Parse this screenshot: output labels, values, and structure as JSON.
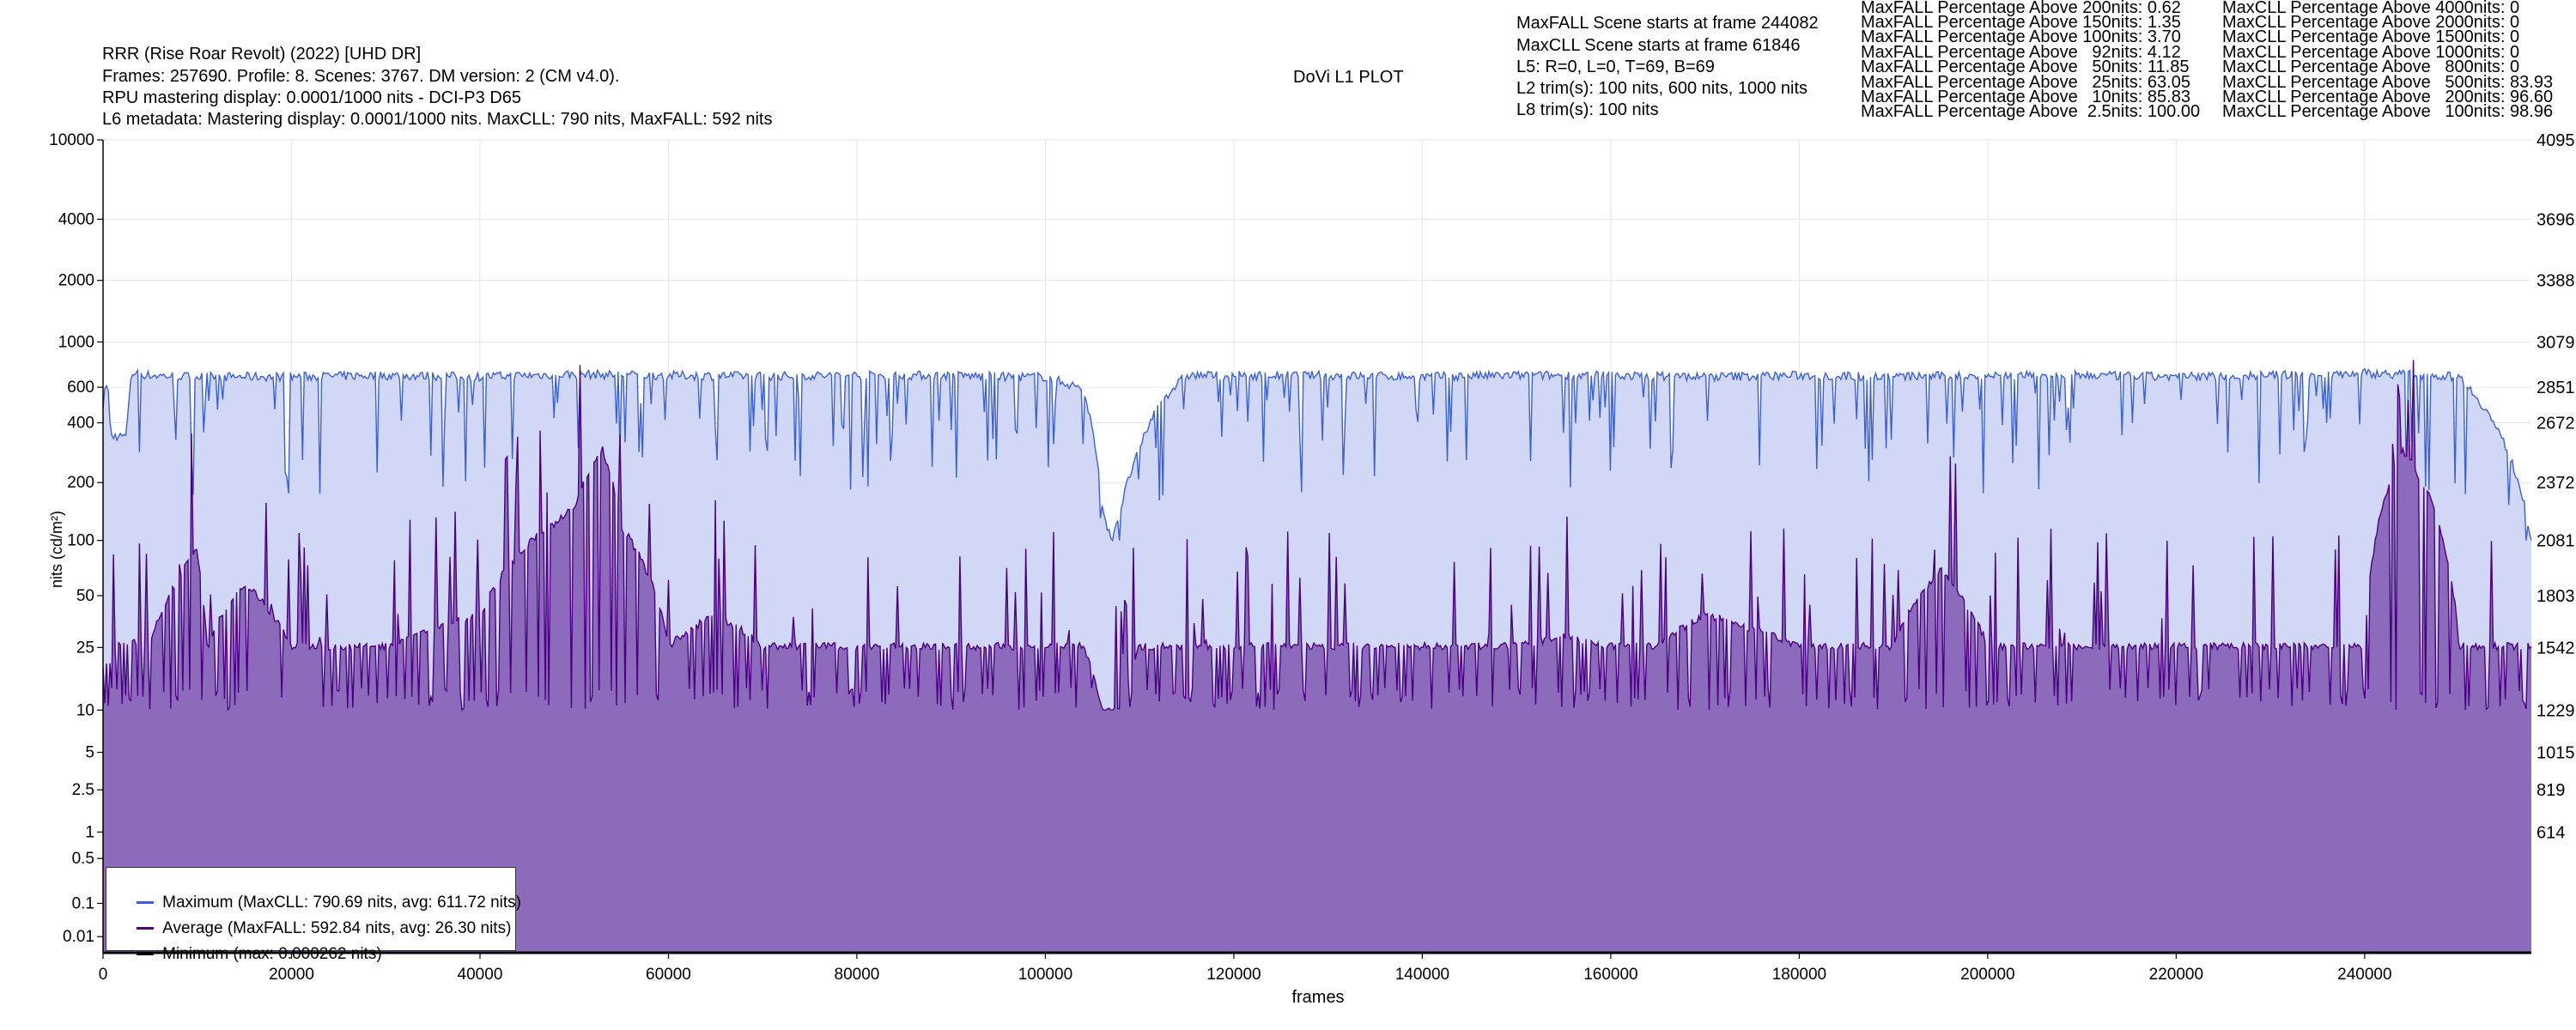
{
  "header": {
    "lines": [
      "RRR (Rise Roar Revolt) (2022) [UHD DR]",
      "Frames: 257690. Profile: 8. Scenes: 3767. DM version: 2 (CM v4.0).",
      "RPU mastering display: 0.0001/1000 nits - DCI-P3 D65",
      "L6 metadata: Mastering display: 0.0001/1000 nits. MaxCLL: 790 nits, MaxFALL: 592 nits"
    ],
    "plot_title": "DoVi L1 PLOT",
    "info_lines": [
      "MaxFALL Scene starts at frame 244082",
      "MaxCLL Scene starts at frame 61846",
      "L5: R=0, L=0, T=69, B=69",
      "L2 trim(s): 100 nits, 600 nits, 1000 nits",
      "L8 trim(s): 100 nits"
    ],
    "maxfall_stats": [
      "MaxFALL Percentage Above 200nits: 0.62",
      "MaxFALL Percentage Above 150nits: 1.35",
      "MaxFALL Percentage Above 100nits: 3.70",
      "MaxFALL Percentage Above   92nits: 4.12",
      "MaxFALL Percentage Above   50nits: 11.85",
      "MaxFALL Percentage Above   25nits: 63.05",
      "MaxFALL Percentage Above   10nits: 85.83",
      "MaxFALL Percentage Above  2.5nits: 100.00"
    ],
    "maxcll_stats": [
      "MaxCLL Percentage Above 4000nits: 0",
      "MaxCLL Percentage Above 2000nits: 0",
      "MaxCLL Percentage Above 1500nits: 0",
      "MaxCLL Percentage Above 1000nits: 0",
      "MaxCLL Percentage Above   800nits: 0",
      "MaxCLL Percentage Above   500nits: 83.93",
      "MaxCLL Percentage Above   200nits: 96.60",
      "MaxCLL Percentage Above   100nits: 98.96"
    ]
  },
  "legend": {
    "max_label": "Maximum (MaxCLL: 790.69 nits, avg: 611.72 nits)",
    "avg_label": "Average (MaxFALL: 592.84 nits, avg: 26.30 nits)",
    "min_label": "Minimum (max: 0.000262 nits)"
  },
  "colors": {
    "maximum": "#3b5fd9",
    "maximum_fill": "#d0d8f6",
    "average": "#4b0082",
    "average_fill": "#8c6bbd",
    "minimum": "#000000",
    "grid": "#e6e6ea"
  },
  "chart_data": {
    "type": "area",
    "title": "DoVi L1 PLOT",
    "xlabel": "frames",
    "ylabel": "nits (cd/m²)",
    "xlim": [
      0,
      257690
    ],
    "ylim": [
      0.005,
      10000
    ],
    "y_scale": "pq",
    "grid": true,
    "legend_position": "bottom-left",
    "x_ticks": [
      0,
      20000,
      40000,
      60000,
      80000,
      100000,
      120000,
      140000,
      160000,
      180000,
      200000,
      220000,
      240000
    ],
    "x_tick_labels": [
      "0",
      "20000",
      "40000",
      "60000",
      "80000",
      "100000",
      "120000",
      "140000",
      "160000",
      "180000",
      "200000",
      "220000",
      "240000"
    ],
    "y_ticks": [
      0.01,
      0.1,
      0.5,
      1,
      2.5,
      5,
      10,
      25,
      50,
      100,
      200,
      400,
      600,
      1000,
      2000,
      4000,
      10000
    ],
    "y_tick_labels": [
      "0.01",
      "0.1",
      "0.5",
      "1",
      "2.5",
      "5",
      "10",
      "25",
      "50",
      "100",
      "200",
      "400",
      "600",
      "1000",
      "2000",
      "4000",
      "10000"
    ],
    "right_axis_labels": [
      "614",
      "819",
      "1015",
      "1229",
      "1542",
      "1803",
      "2081",
      "2372",
      "2672",
      "2851",
      "3079",
      "3388",
      "3696",
      "4095"
    ],
    "right_axis_nits": [
      1,
      2.5,
      5,
      10,
      25,
      50,
      100,
      200,
      400,
      600,
      1000,
      2000,
      4000,
      10000
    ],
    "series": [
      {
        "name": "Maximum (MaxCLL: 790.69 nits, avg: 611.72 nits)",
        "x": [
          0,
          500,
          800,
          2500,
          3000,
          5000,
          10000,
          20000,
          30000,
          40000,
          50000,
          60000,
          70000,
          80000,
          90000,
          95000,
          100000,
          104000,
          106000,
          107000,
          108000,
          110000,
          112000,
          115000,
          120000,
          130000,
          140000,
          150000,
          160000,
          170000,
          180000,
          190000,
          200000,
          210000,
          220000,
          230000,
          240000,
          250000,
          257690
        ],
        "y": [
          620,
          620,
          350,
          350,
          720,
          700,
          690,
          690,
          700,
          690,
          710,
          700,
          695,
          700,
          700,
          690,
          690,
          600,
          150,
          100,
          150,
          300,
          500,
          700,
          700,
          700,
          690,
          700,
          700,
          690,
          700,
          690,
          700,
          700,
          690,
          700,
          720,
          690,
          100
        ],
        "nominal": 700,
        "min": 100
      },
      {
        "name": "Average (MaxFALL: 592.84 nits, avg: 26.30 nits)",
        "x": [
          0,
          500,
          2000,
          5000,
          10000,
          11000,
          15000,
          20000,
          30000,
          40000,
          50000,
          53000,
          55000,
          60000,
          65000,
          70000,
          80000,
          90000,
          100000,
          104000,
          106000,
          108000,
          110000,
          115000,
          120000,
          130000,
          140000,
          150000,
          155000,
          160000,
          165000,
          170000,
          180000,
          190000,
          195000,
          200000,
          210000,
          220000,
          230000,
          240000,
          244082,
          250000,
          257690
        ],
        "y": [
          20,
          20,
          28,
          26,
          90,
          25,
          60,
          26,
          26,
          40,
          150,
          300,
          120,
          26,
          40,
          26,
          26,
          26,
          26,
          26,
          10,
          10,
          26,
          26,
          26,
          26,
          26,
          26,
          30,
          26,
          26,
          40,
          26,
          26,
          70,
          26,
          26,
          26,
          26,
          26,
          300,
          26,
          26
        ],
        "nominal": 27,
        "min": 10
      },
      {
        "name": "Minimum (max: 0.000262 nits)",
        "x": [
          0,
          257690
        ],
        "y": [
          0.0001,
          0.0001
        ]
      }
    ]
  }
}
